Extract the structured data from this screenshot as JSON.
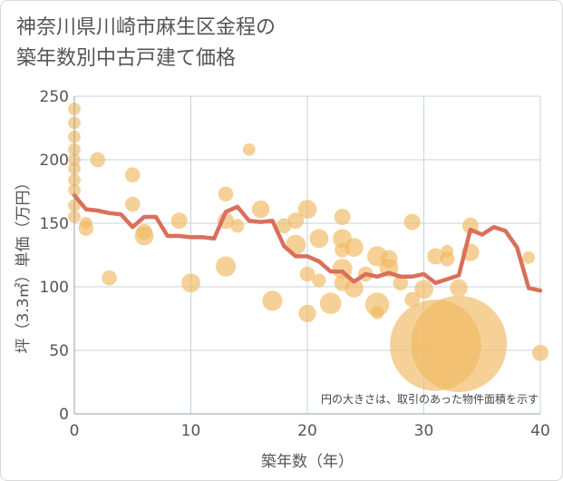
{
  "title_line1": "神奈川県川崎市麻生区金程の",
  "title_line2": "築年数別中古戸建て価格",
  "chart_data": {
    "type": "scatter+line",
    "xlabel": "築年数（年）",
    "ylabel": "坪（3.3㎡）単価（万円）",
    "xlim": [
      0,
      40
    ],
    "ylim": [
      0,
      250
    ],
    "xticks": [
      "0",
      "10",
      "20",
      "30",
      "40"
    ],
    "yticks": [
      "0",
      "50",
      "100",
      "150",
      "200",
      "250"
    ],
    "note": "円の大きさは、取引のあった物件面積を示す",
    "colors": {
      "bubble": "#f0b860",
      "line": "#d9705c",
      "grid": "#c5d3df"
    },
    "bubbles": [
      {
        "x": 0,
        "y": 240,
        "s": 1
      },
      {
        "x": 0,
        "y": 229,
        "s": 1
      },
      {
        "x": 0,
        "y": 218,
        "s": 1
      },
      {
        "x": 0,
        "y": 208,
        "s": 1
      },
      {
        "x": 0,
        "y": 200,
        "s": 1
      },
      {
        "x": 0,
        "y": 193,
        "s": 1
      },
      {
        "x": 0,
        "y": 184,
        "s": 1
      },
      {
        "x": 0,
        "y": 176,
        "s": 1
      },
      {
        "x": 0,
        "y": 164,
        "s": 1
      },
      {
        "x": 0,
        "y": 155,
        "s": 1
      },
      {
        "x": 1,
        "y": 146,
        "s": 1.2
      },
      {
        "x": 1,
        "y": 150,
        "s": 1
      },
      {
        "x": 2,
        "y": 200,
        "s": 1.2
      },
      {
        "x": 3,
        "y": 107,
        "s": 1.2
      },
      {
        "x": 5,
        "y": 188,
        "s": 1.2
      },
      {
        "x": 5,
        "y": 165,
        "s": 1.2
      },
      {
        "x": 6,
        "y": 140,
        "s": 1.5
      },
      {
        "x": 6,
        "y": 143,
        "s": 1.3
      },
      {
        "x": 9,
        "y": 152,
        "s": 1.3
      },
      {
        "x": 10,
        "y": 103,
        "s": 1.5
      },
      {
        "x": 13,
        "y": 173,
        "s": 1.2
      },
      {
        "x": 13,
        "y": 116,
        "s": 1.6
      },
      {
        "x": 13,
        "y": 152,
        "s": 1.3
      },
      {
        "x": 14,
        "y": 148,
        "s": 1.1
      },
      {
        "x": 15,
        "y": 208,
        "s": 1
      },
      {
        "x": 16,
        "y": 161,
        "s": 1.4
      },
      {
        "x": 17,
        "y": 89,
        "s": 1.6
      },
      {
        "x": 18,
        "y": 148,
        "s": 1.2
      },
      {
        "x": 19,
        "y": 152,
        "s": 1.3
      },
      {
        "x": 19,
        "y": 133,
        "s": 1.6
      },
      {
        "x": 20,
        "y": 161,
        "s": 1.5
      },
      {
        "x": 20,
        "y": 110,
        "s": 1.2
      },
      {
        "x": 20,
        "y": 79,
        "s": 1.4
      },
      {
        "x": 21,
        "y": 138,
        "s": 1.5
      },
      {
        "x": 21,
        "y": 105,
        "s": 1.1
      },
      {
        "x": 22,
        "y": 87,
        "s": 1.7
      },
      {
        "x": 23,
        "y": 155,
        "s": 1.3
      },
      {
        "x": 23,
        "y": 138,
        "s": 1.5
      },
      {
        "x": 23,
        "y": 129,
        "s": 1.2
      },
      {
        "x": 23,
        "y": 114,
        "s": 1.6
      },
      {
        "x": 23,
        "y": 103,
        "s": 1.3
      },
      {
        "x": 24,
        "y": 131,
        "s": 1.5
      },
      {
        "x": 24,
        "y": 99,
        "s": 1.5
      },
      {
        "x": 25,
        "y": 110,
        "s": 1.2
      },
      {
        "x": 26,
        "y": 124,
        "s": 1.6
      },
      {
        "x": 26,
        "y": 86,
        "s": 1.9
      },
      {
        "x": 26,
        "y": 80,
        "s": 1.1
      },
      {
        "x": 27,
        "y": 122,
        "s": 1.4
      },
      {
        "x": 27,
        "y": 115,
        "s": 1.5
      },
      {
        "x": 28,
        "y": 103,
        "s": 1.2
      },
      {
        "x": 29,
        "y": 151,
        "s": 1.3
      },
      {
        "x": 29,
        "y": 90,
        "s": 1.2
      },
      {
        "x": 30,
        "y": 98,
        "s": 1.5
      },
      {
        "x": 31,
        "y": 124,
        "s": 1.3
      },
      {
        "x": 31,
        "y": 54,
        "s": 7.2
      },
      {
        "x": 32,
        "y": 128,
        "s": 1
      },
      {
        "x": 32,
        "y": 122,
        "s": 1.2
      },
      {
        "x": 33,
        "y": 99,
        "s": 1.4
      },
      {
        "x": 33,
        "y": 55,
        "s": 7.6
      },
      {
        "x": 34,
        "y": 148,
        "s": 1.3
      },
      {
        "x": 34,
        "y": 127,
        "s": 1.4
      },
      {
        "x": 39,
        "y": 123,
        "s": 1
      },
      {
        "x": 40,
        "y": 48,
        "s": 1.3
      }
    ],
    "line": {
      "x": [
        0,
        1,
        2,
        3,
        4,
        5,
        6,
        7,
        8,
        9,
        10,
        11,
        12,
        13,
        14,
        15,
        16,
        17,
        18,
        19,
        20,
        21,
        22,
        23,
        24,
        25,
        26,
        27,
        28,
        29,
        30,
        31,
        32,
        33,
        34,
        35,
        36,
        37,
        38,
        39,
        40
      ],
      "y": [
        172,
        161,
        160,
        158,
        157,
        147,
        155,
        155,
        140,
        140,
        139,
        139,
        138,
        159,
        163,
        152,
        151,
        152,
        132,
        124,
        124,
        120,
        112,
        112,
        104,
        110,
        108,
        111,
        108,
        108,
        110,
        103,
        106,
        109,
        145,
        141,
        147,
        144,
        131,
        99,
        97
      ]
    }
  }
}
